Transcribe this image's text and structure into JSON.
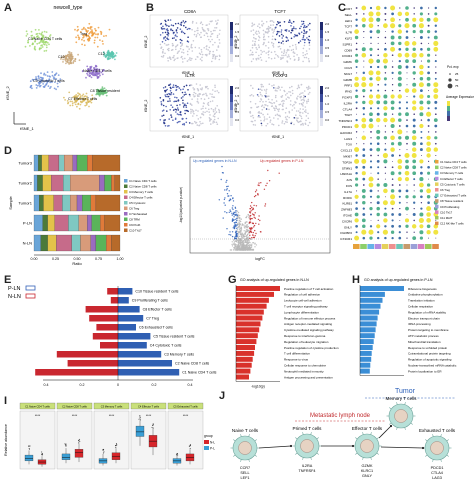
{
  "panels": {
    "A": {
      "label": "A",
      "title": "newcell_type",
      "xlab": "tSNE_1",
      "ylab": "tSNE_2",
      "clusters": [
        {
          "name": "Treg",
          "color": "#ef9b3a"
        },
        {
          "name": "C3 Naive CD4 T cells",
          "color": "#9fd86b"
        },
        {
          "name": "C5 Cytotoxic T cells",
          "color": "#6b8fd8"
        },
        {
          "name": "Naive CD8 T cells",
          "color": "#8c6bc9"
        },
        {
          "name": "C7 Effector T cells",
          "color": "#d8b85a"
        },
        {
          "name": "C10",
          "color": "#c9a87a"
        },
        {
          "name": "C12",
          "color": "#5bc7b0"
        },
        {
          "name": "C8 Tissue resident",
          "color": "#6bc07a"
        }
      ]
    },
    "B": {
      "label": "B",
      "genes": [
        "CD8A",
        "TCF7",
        "IL7R",
        "FOXP3"
      ],
      "xlab": "tSNE_1",
      "ylab": "tSNE_2",
      "legend_ticks": [
        "2.0",
        "1.5",
        "1.0",
        "0.5",
        "0.0"
      ]
    },
    "C": {
      "label": "C",
      "size_legend_title": "Pct. exp",
      "size_values": [
        "25",
        "50",
        "75"
      ],
      "color_legend_title": "Average Expression",
      "genes": [
        "CCR7",
        "SELL",
        "LEF1",
        "TCF7",
        "IL7R",
        "KLF2",
        "S1PR1",
        "CD69",
        "CXCR4",
        "GZMK",
        "CCL5",
        "NKG7",
        "GZMB",
        "PRF1",
        "IFNG",
        "FOXP3",
        "IL2RA",
        "CTLA4",
        "TIGIT",
        "TNFRSF4",
        "PDCD1",
        "HAVCR2",
        "LAG3",
        "TOX",
        "CXCL13",
        "MKI67",
        "TOP2A",
        "STMN1",
        "HSPA1A",
        "JUN",
        "FOS",
        "IL17A",
        "RORC",
        "KLRB1",
        "ZNF683",
        "ITGAE",
        "CXCR6",
        "GNLY",
        "FGFBP2",
        "CX3CR1"
      ],
      "categories": [
        {
          "name": "C1 Naive CD4 T cells",
          "color": "#e6a23c"
        },
        {
          "name": "C2 Naive CD8 T cells",
          "color": "#8ccf6a"
        },
        {
          "name": "C3 Memory T cells",
          "color": "#66b3e8"
        },
        {
          "name": "C4 Effector T cells",
          "color": "#b58be0"
        },
        {
          "name": "C5 Cytotoxic T cells",
          "color": "#e5d15a"
        },
        {
          "name": "C6 Treg",
          "color": "#ee8f8f"
        },
        {
          "name": "C7 Exhausted T cells",
          "color": "#6cc7b8"
        },
        {
          "name": "C8 Tissue resident",
          "color": "#c69b6d"
        },
        {
          "name": "C9 Proliferating",
          "color": "#9aa0d8"
        },
        {
          "name": "C10 Th17",
          "color": "#d880c0"
        },
        {
          "name": "C11 MAIT",
          "color": "#a0c85a"
        },
        {
          "name": "C12 NK-like T cells",
          "color": "#e08a4a"
        }
      ]
    },
    "D": {
      "label": "D",
      "ylab": "Sample",
      "xlab": "Ratio",
      "samples": [
        "Tumor3",
        "Tumor2",
        "Tumor1",
        "P-LN",
        "N-LN"
      ],
      "xticks": [
        "0.00",
        "0.25",
        "0.50",
        "0.75",
        "1.00"
      ],
      "segments": [
        [
          0.05,
          0.04,
          0.08,
          0.12,
          0.06,
          0.1,
          0.05,
          0.12,
          0.06,
          0.32
        ],
        [
          0.04,
          0.06,
          0.1,
          0.14,
          0.08,
          0.34,
          0.06,
          0.08,
          0.04,
          0.06
        ],
        [
          0.06,
          0.05,
          0.12,
          0.1,
          0.09,
          0.08,
          0.06,
          0.1,
          0.06,
          0.28
        ],
        [
          0.1,
          0.06,
          0.08,
          0.16,
          0.12,
          0.1,
          0.05,
          0.1,
          0.05,
          0.18
        ],
        [
          0.08,
          0.08,
          0.1,
          0.18,
          0.1,
          0.12,
          0.06,
          0.12,
          0.06,
          0.1
        ]
      ],
      "colors": [
        "#6aa5d8",
        "#4c7a3a",
        "#e3c24a",
        "#c66b8a",
        "#7fc8c2",
        "#d89b7a",
        "#9a6bc0",
        "#5ab45a",
        "#e07a3a",
        "#b76a2a"
      ],
      "legend": [
        "C1 Naive CD4 T cells",
        "C2 Naive CD8 T cells",
        "C3 Memory T cells",
        "C4 Effector T cells",
        "C5 Cytotoxic",
        "C6 Treg",
        "C7 Exhausted",
        "C8 TRM",
        "C9 Prolif.",
        "C10 Th17"
      ]
    },
    "E": {
      "label": "E",
      "legend": [
        "P-LN",
        "N-LN"
      ],
      "rows": [
        "C10 Tissue resident T cells",
        "C9 Proliferating T cells",
        "C8 Effector T cells",
        "C7 Treg",
        "C6 Exhausted T cells",
        "C5 Tissue resident T cells",
        "C4 Cytotoxic T cells",
        "C3 Memory T cells",
        "C2 Naive CD8 T cells",
        "C1 Naive CD4 T cells"
      ],
      "p": [
        0.08,
        0.06,
        0.12,
        0.14,
        0.1,
        0.18,
        0.16,
        0.24,
        0.3,
        0.34
      ],
      "n": [
        0.06,
        0.04,
        0.18,
        0.16,
        0.12,
        0.14,
        0.1,
        0.34,
        0.28,
        0.46
      ],
      "xticks": [
        "0.4",
        "0.2",
        "0",
        "0.2",
        "0.4"
      ]
    },
    "F": {
      "label": "F",
      "left_text": "Up-regulated genes in N-LN",
      "right_text": "Up-regulated genes in P-LN",
      "xlab": "logFC",
      "ylab": "-log10(adjusted p-value)"
    },
    "G": {
      "label": "G",
      "title": "GO analysis of up-regulated genes in N-LN",
      "terms": [
        "Positive regulation of T cell activation",
        "Regulation of cell adhesion",
        "Leukocyte cell-cell adhesion",
        "T cell receptor signaling pathway",
        "Lymphocyte differentiation",
        "Regulation of immune effector process",
        "Antigen receptor-mediated signaling",
        "Cytokine-mediated signaling pathway",
        "Response to interferon-gamma",
        "Regulation of leukocyte migration",
        "Positive regulation of cytokine production",
        "T cell differentiation",
        "Response to virus",
        "Cellular response to chemokine",
        "Neutrophil mediated immunity",
        "Antigen processing and presentation"
      ],
      "values": [
        9.5,
        8.2,
        7.1,
        6.6,
        6.0,
        5.7,
        5.3,
        5.0,
        4.7,
        4.4,
        4.1,
        3.9,
        3.6,
        3.4,
        3.1,
        2.8
      ],
      "xlab": "-log10(p)",
      "color": "#d9312b"
    },
    "H": {
      "label": "H",
      "title": "GO analysis of up-regulated genes in P-LN",
      "terms": [
        "Ribosome biogenesis",
        "Oxidative phosphorylation",
        "Translation initiation",
        "Cellular respiration",
        "Regulation of mRNA stability",
        "Electron transport chain",
        "rRNA processing",
        "Protein targeting to membrane",
        "ATP metabolic process",
        "Mitochondrial translation",
        "Response to unfolded protein",
        "Cotranslational protein targeting",
        "Regulation of apoptotic signaling",
        "Nuclear-transcribed mRNA catabolic",
        "Protein localization to ER"
      ],
      "values": [
        9.0,
        5.1,
        4.6,
        4.2,
        3.9,
        3.6,
        3.4,
        3.2,
        3.0,
        2.8,
        2.6,
        2.4,
        2.3,
        2.1,
        2.0
      ],
      "color": "#3b8ed6"
    },
    "I": {
      "label": "I",
      "ylab": "Relative abundance",
      "groups": [
        {
          "title": "C1 Naive CD4 T cells",
          "sig": "****",
          "pln": [
            0.04,
            0.07,
            0.09,
            0.12,
            0.16
          ],
          "nln": [
            0.02,
            0.04,
            0.06,
            0.08,
            0.11
          ]
        },
        {
          "title": "C2 Naive CD8 T cells",
          "sig": "****",
          "pln": [
            0.05,
            0.08,
            0.1,
            0.13,
            0.18
          ],
          "nln": [
            0.06,
            0.1,
            0.14,
            0.17,
            0.22
          ]
        },
        {
          "title": "C3 Memory T cells",
          "sig": "****",
          "pln": [
            0.03,
            0.05,
            0.07,
            0.09,
            0.13
          ],
          "nln": [
            0.05,
            0.08,
            0.11,
            0.14,
            0.18
          ]
        },
        {
          "title": "C4 Effector T cells",
          "sig": "****",
          "pln": [
            0.2,
            0.28,
            0.32,
            0.37,
            0.42
          ],
          "nln": [
            0.12,
            0.19,
            0.24,
            0.29,
            0.35
          ]
        },
        {
          "title": "C5 Exhausted T cells",
          "sig": "****",
          "pln": [
            0.03,
            0.05,
            0.07,
            0.09,
            0.12
          ],
          "nln": [
            0.04,
            0.07,
            0.1,
            0.13,
            0.17
          ]
        }
      ],
      "legend_title": "group",
      "legend": [
        "N-LN",
        "P-LN"
      ],
      "pln_color": "#3a9fd6",
      "nln_color": "#d7262b"
    },
    "J": {
      "label": "J",
      "tumor": "Tumor",
      "lymph": "Metastatic lymph node",
      "stages": [
        {
          "name": "Naive T cells",
          "genes": [
            "CCR7",
            "SELL",
            "LEF1"
          ]
        },
        {
          "name": "Primed T cells",
          "genes": [
            "IL2RA",
            "TNFRSF4"
          ]
        },
        {
          "name": "Effector T cells",
          "genes": [
            "GZMK",
            "KLRC1",
            "GNLY"
          ]
        },
        {
          "name": "Memory T cells",
          "genes": []
        },
        {
          "name": "Exhausted T cells",
          "genes": [
            "PDCD1",
            "CTLA4",
            "LAG3"
          ]
        }
      ]
    }
  }
}
